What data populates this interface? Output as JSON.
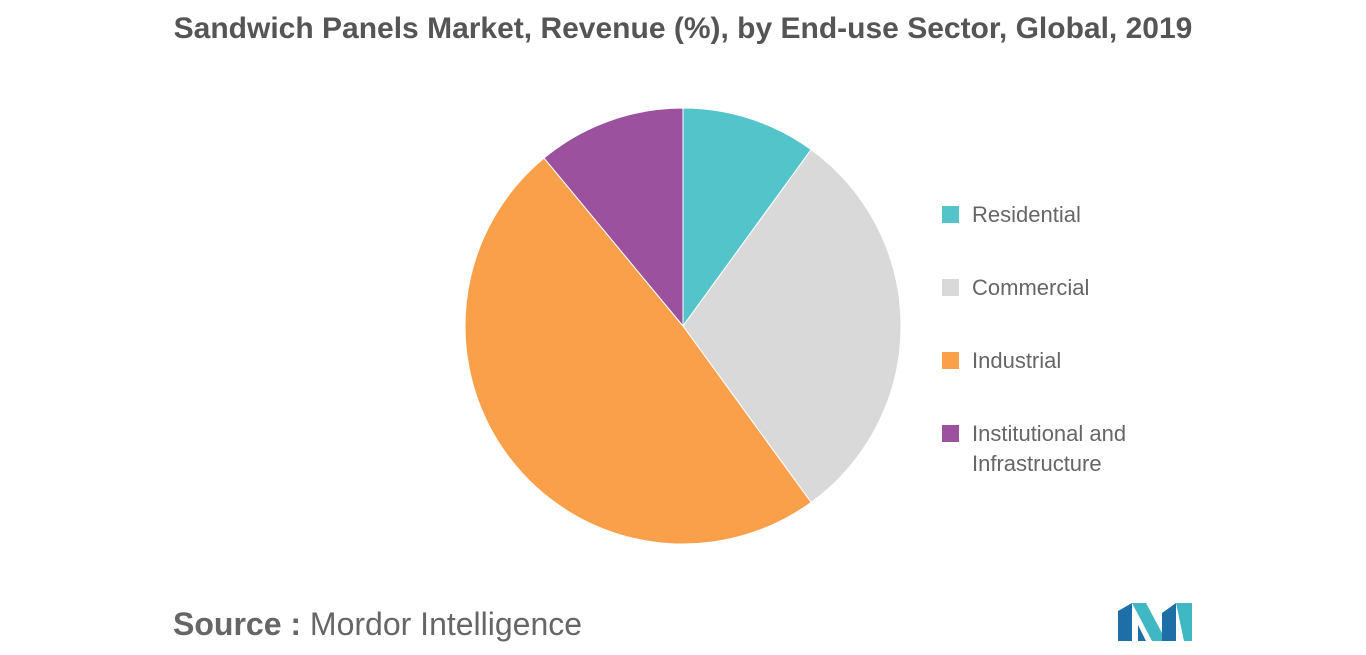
{
  "chart_data": {
    "type": "pie",
    "title": "Sandwich Panels Market, Revenue (%), by End-use Sector, Global, 2019",
    "categories": [
      "Residential",
      "Commercial",
      "Industrial",
      "Institutional and Infrastructure"
    ],
    "values": [
      10,
      30,
      49,
      11
    ],
    "colors": [
      "#52C4CA",
      "#D9D9D9",
      "#FBA04A",
      "#9B519E"
    ],
    "start_angle_deg": 0,
    "direction": "clockwise",
    "legend_position": "right"
  },
  "legend": {
    "items": [
      {
        "label": "Residential",
        "color": "#52C4CA"
      },
      {
        "label": "Commercial",
        "color": "#D9D9D9"
      },
      {
        "label": "Industrial",
        "color": "#FBA04A"
      },
      {
        "label": "Institutional and Infrastructure",
        "color": "#9B519E"
      }
    ]
  },
  "source": {
    "prefix": "Source :",
    "name": "Mordor Intelligence"
  },
  "logo": {
    "icon": "mordor-intelligence-logo-icon",
    "colors": [
      "#1E6FA8",
      "#3FB8C4"
    ]
  }
}
